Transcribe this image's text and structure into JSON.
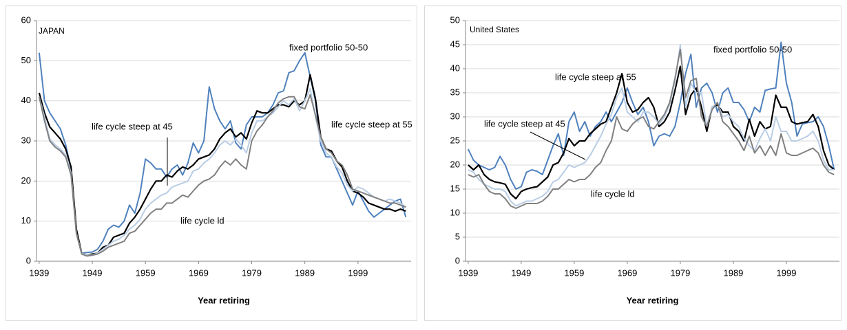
{
  "chart_data": [
    {
      "type": "line",
      "title": "JAPAN",
      "x_label": "Year retiring",
      "x": [
        1939,
        1940,
        1941,
        1942,
        1943,
        1944,
        1945,
        1946,
        1947,
        1948,
        1949,
        1950,
        1951,
        1952,
        1953,
        1954,
        1955,
        1956,
        1957,
        1958,
        1959,
        1960,
        1961,
        1962,
        1963,
        1964,
        1965,
        1966,
        1967,
        1968,
        1969,
        1970,
        1971,
        1972,
        1973,
        1974,
        1975,
        1976,
        1977,
        1978,
        1979,
        1980,
        1981,
        1982,
        1983,
        1984,
        1985,
        1986,
        1987,
        1988,
        1989,
        1990,
        1991,
        1992,
        1993,
        1994,
        1995,
        1996,
        1997,
        1998,
        1999,
        2000,
        2001,
        2002,
        2003,
        2004,
        2005,
        2006,
        2007,
        2008
      ],
      "xlim": [
        1938.5,
        2009
      ],
      "xticks": [
        1939,
        1949,
        1959,
        1969,
        1979,
        1989,
        1999
      ],
      "ylim": [
        0,
        60
      ],
      "yticks": [
        0,
        10,
        20,
        30,
        40,
        50,
        60
      ],
      "grid": true,
      "series": [
        {
          "name": "fixed portfolio 50-50",
          "color": "#4f81bd",
          "values": [
            52,
            40,
            37,
            35,
            33,
            29,
            23,
            8,
            2,
            2.2,
            2.3,
            3,
            5,
            8,
            9,
            8.5,
            10,
            14,
            12,
            17,
            25.5,
            24.5,
            23,
            23,
            21,
            23,
            24,
            21.5,
            24.5,
            29.5,
            27,
            30,
            43.5,
            38,
            35,
            33,
            35,
            29.5,
            28,
            34,
            36,
            36,
            36,
            37,
            39,
            42,
            42.5,
            47,
            47.5,
            50,
            52,
            46,
            40,
            29,
            26,
            26,
            23,
            20,
            17,
            14,
            17.5,
            15,
            12.5,
            11,
            12,
            13,
            14,
            15,
            15.5,
            11
          ]
        },
        {
          "name": "life cycle steep at 55",
          "color": "#000000",
          "values": [
            42,
            37,
            33.5,
            32,
            30.5,
            28,
            23.5,
            8,
            2,
            1.5,
            1.8,
            2,
            3.5,
            4,
            6,
            6.5,
            7,
            9.5,
            11,
            13,
            15.5,
            18,
            20,
            20,
            21.5,
            21,
            22.5,
            23.5,
            23,
            24,
            25.5,
            26,
            26.5,
            28,
            30.5,
            32,
            33,
            31,
            32,
            30.5,
            34.5,
            37.5,
            37,
            37,
            38,
            39,
            39,
            38.5,
            40,
            39,
            40,
            46.5,
            40.5,
            31,
            28,
            27.5,
            25,
            23.5,
            20,
            17.5,
            17,
            16,
            14.5,
            14,
            13.5,
            13,
            13,
            12.5,
            13,
            12.5
          ]
        },
        {
          "name": "life cycle steep at 45",
          "color": "#b9cde5",
          "values": [
            41,
            36,
            30.5,
            29,
            28,
            26.5,
            22,
            7,
            2,
            1.5,
            1.6,
            2,
            3,
            4,
            5,
            5.5,
            6.5,
            8,
            9,
            10.5,
            13,
            14.5,
            15.5,
            16.5,
            17,
            18.5,
            19,
            19.5,
            20,
            22.5,
            23,
            24.5,
            25.5,
            27,
            29,
            30,
            29,
            30.5,
            29,
            27,
            32,
            35,
            35,
            36,
            37,
            38.5,
            40,
            39,
            40.5,
            37.5,
            40,
            43,
            36,
            30,
            27,
            26,
            23.5,
            22,
            19,
            17.5,
            18.5,
            18,
            17,
            16,
            15.5,
            15,
            15.5,
            15,
            14.5,
            13.5
          ]
        },
        {
          "name": "life cycle ld",
          "color": "#808080",
          "values": [
            41,
            35,
            30,
            28.5,
            27.5,
            26,
            21.5,
            7,
            1.8,
            1.3,
            1.5,
            1.8,
            2.5,
            3.5,
            4,
            4.5,
            5,
            7,
            7.5,
            9,
            10.5,
            12,
            13,
            13,
            14.5,
            14.5,
            15.5,
            16.5,
            16,
            17.5,
            19,
            20,
            20.5,
            21.5,
            23.5,
            25,
            24,
            25.5,
            24,
            23,
            30,
            32.5,
            34,
            36,
            37.5,
            39.5,
            40.5,
            41,
            41,
            38.5,
            38,
            41.5,
            36.5,
            31,
            28,
            27,
            25,
            24,
            21.5,
            18,
            17.5,
            17,
            16.5,
            16,
            15.5,
            15,
            14.5,
            14.5,
            14,
            13.5
          ]
        }
      ]
    },
    {
      "type": "line",
      "title": "United States",
      "x_label": "Year retiring",
      "x": [
        1939,
        1940,
        1941,
        1942,
        1943,
        1944,
        1945,
        1946,
        1947,
        1948,
        1949,
        1950,
        1951,
        1952,
        1953,
        1954,
        1955,
        1956,
        1957,
        1958,
        1959,
        1960,
        1961,
        1962,
        1963,
        1964,
        1965,
        1966,
        1967,
        1968,
        1969,
        1970,
        1971,
        1972,
        1973,
        1974,
        1975,
        1976,
        1977,
        1978,
        1979,
        1980,
        1981,
        1982,
        1983,
        1984,
        1985,
        1986,
        1987,
        1988,
        1989,
        1990,
        1991,
        1992,
        1993,
        1994,
        1995,
        1996,
        1997,
        1998,
        1999,
        2000,
        2001,
        2002,
        2003,
        2004,
        2005,
        2006,
        2007,
        2008
      ],
      "xlim": [
        1938.5,
        2009
      ],
      "xticks": [
        1939,
        1949,
        1959,
        1969,
        1979,
        1989,
        1999
      ],
      "ylim": [
        0,
        50
      ],
      "yticks": [
        0,
        5,
        10,
        15,
        20,
        25,
        30,
        35,
        40,
        45,
        50
      ],
      "grid": true,
      "series": [
        {
          "name": "fixed portfolio 50-50",
          "color": "#4f81bd",
          "values": [
            23.3,
            21,
            20,
            19.5,
            19,
            19.5,
            21.8,
            20,
            17,
            15,
            15.5,
            18.5,
            19,
            18.7,
            18,
            21,
            24,
            26.5,
            22,
            29,
            31,
            27,
            29,
            26,
            28,
            29,
            31,
            29,
            31,
            33,
            36,
            33,
            30.5,
            32,
            29,
            24,
            26,
            26.5,
            26,
            28,
            33,
            39,
            43,
            32,
            36,
            37,
            35,
            31,
            35,
            36,
            33,
            33,
            31.5,
            29,
            32,
            31,
            35.5,
            35.8,
            36,
            45.5,
            37,
            33,
            26,
            28.5,
            28.8,
            29,
            30,
            28,
            24,
            19
          ]
        },
        {
          "name": "life cycle steep at 55",
          "color": "#000000",
          "values": [
            20,
            19,
            20,
            18,
            17,
            16.5,
            16.3,
            16,
            14,
            13,
            14.5,
            15,
            15.3,
            15.5,
            16.5,
            17.5,
            20,
            20.5,
            22.5,
            25.5,
            24,
            25,
            25,
            26.5,
            27.5,
            28.5,
            29,
            32,
            35,
            39,
            33,
            31,
            31.5,
            33,
            34,
            32,
            28,
            29,
            31,
            35.5,
            40.5,
            30.5,
            34.5,
            36,
            32,
            27,
            32,
            32.5,
            31,
            31,
            28,
            27,
            25,
            29.5,
            26,
            29,
            27.5,
            28,
            34.5,
            32,
            32,
            29,
            28.5,
            28.8,
            29,
            30.5,
            28,
            23,
            20,
            19
          ]
        },
        {
          "name": "life cycle steep at 45",
          "color": "#b9cde5",
          "values": [
            19,
            18.5,
            17,
            16,
            15.5,
            15,
            15,
            14.5,
            12.5,
            11.5,
            12,
            12.5,
            12.5,
            13,
            13.5,
            14.5,
            16.5,
            17,
            18.5,
            20,
            19.5,
            20,
            20.5,
            22,
            24,
            26,
            28.5,
            30.5,
            34,
            36,
            31,
            30,
            29,
            31,
            31,
            30,
            28.5,
            30,
            32.5,
            37.5,
            45,
            32,
            37,
            35,
            35,
            28,
            32,
            33,
            30,
            30.5,
            29,
            28,
            25.5,
            24,
            23,
            25.5,
            27.5,
            25,
            30,
            27,
            27,
            25,
            25,
            25.5,
            26,
            27,
            25,
            21,
            19,
            19
          ]
        },
        {
          "name": "life cycle ld",
          "color": "#808080",
          "values": [
            18,
            17.5,
            18,
            16,
            14.5,
            14,
            14,
            13,
            11.5,
            11,
            11.5,
            12,
            12,
            12,
            12.5,
            13.5,
            15,
            15,
            16,
            17,
            16.5,
            17,
            17,
            18,
            19.5,
            20.5,
            23,
            25,
            30,
            27.5,
            27,
            28.5,
            29.5,
            30,
            28,
            27.5,
            29,
            30.5,
            33,
            38,
            44,
            34,
            37.5,
            38,
            30,
            28,
            31.5,
            33,
            29,
            28,
            26.5,
            25,
            23,
            26,
            22.5,
            24,
            22,
            24,
            22,
            26.5,
            22.5,
            22,
            22,
            22.5,
            23,
            23.5,
            22.5,
            20,
            18.5,
            18
          ]
        }
      ]
    }
  ]
}
